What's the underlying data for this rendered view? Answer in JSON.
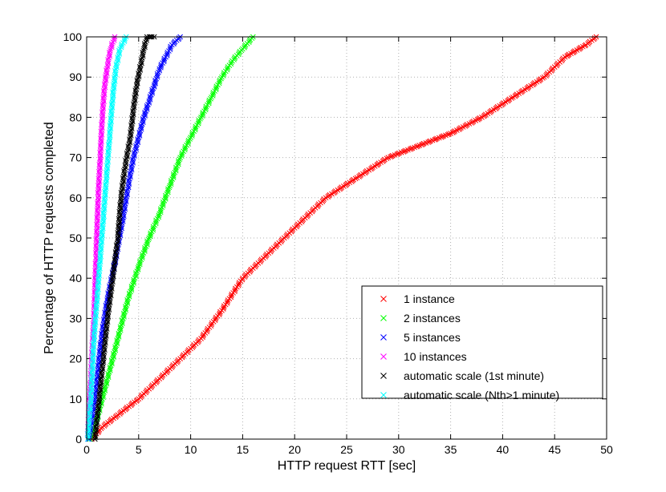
{
  "chart_data": {
    "type": "scatter",
    "title": "",
    "xlabel": "HTTP request RTT [sec]",
    "ylabel": "Percentage of HTTP requests completed",
    "xlim": [
      0,
      50
    ],
    "ylim": [
      0,
      100
    ],
    "xticks": [
      0,
      5,
      10,
      15,
      20,
      25,
      30,
      35,
      40,
      45,
      50
    ],
    "yticks": [
      0,
      10,
      20,
      30,
      40,
      50,
      60,
      70,
      80,
      90,
      100
    ],
    "grid": true,
    "legend_position": "bottom-right",
    "marker": "x",
    "series": [
      {
        "name": "1 instance",
        "color": "#ff0000",
        "points": [
          [
            0.5,
            0
          ],
          [
            1.5,
            3
          ],
          [
            3,
            6
          ],
          [
            5,
            10
          ],
          [
            7,
            15
          ],
          [
            9,
            20
          ],
          [
            11,
            25
          ],
          [
            13,
            32
          ],
          [
            15,
            40
          ],
          [
            17,
            45
          ],
          [
            19,
            50
          ],
          [
            21,
            55
          ],
          [
            23,
            60
          ],
          [
            26,
            65
          ],
          [
            29,
            70
          ],
          [
            32,
            73
          ],
          [
            35,
            76
          ],
          [
            38,
            80
          ],
          [
            41,
            85
          ],
          [
            44,
            90
          ],
          [
            46,
            95
          ],
          [
            48,
            98
          ],
          [
            49,
            100
          ]
        ]
      },
      {
        "name": "2 instances",
        "color": "#00ff00",
        "points": [
          [
            0.3,
            0
          ],
          [
            1,
            5
          ],
          [
            2,
            15
          ],
          [
            3,
            25
          ],
          [
            4,
            35
          ],
          [
            5,
            43
          ],
          [
            6,
            50
          ],
          [
            7,
            56
          ],
          [
            8,
            63
          ],
          [
            9,
            70
          ],
          [
            10,
            75
          ],
          [
            11,
            80
          ],
          [
            12,
            85
          ],
          [
            13,
            90
          ],
          [
            14,
            94
          ],
          [
            15,
            97
          ],
          [
            16,
            100
          ]
        ]
      },
      {
        "name": "5 instances",
        "color": "#0000ff",
        "points": [
          [
            0.2,
            0
          ],
          [
            0.8,
            10
          ],
          [
            1.4,
            25
          ],
          [
            2,
            35
          ],
          [
            2.8,
            45
          ],
          [
            3.5,
            55
          ],
          [
            4,
            63
          ],
          [
            4.5,
            70
          ],
          [
            5,
            75
          ],
          [
            5.5,
            80
          ],
          [
            6,
            84
          ],
          [
            6.5,
            88
          ],
          [
            7,
            92
          ],
          [
            7.6,
            95
          ],
          [
            8.2,
            98
          ],
          [
            9,
            100
          ]
        ]
      },
      {
        "name": "10 instances",
        "color": "#ff00ff",
        "points": [
          [
            0.1,
            0
          ],
          [
            0.4,
            15
          ],
          [
            0.7,
            30
          ],
          [
            0.9,
            45
          ],
          [
            1.1,
            60
          ],
          [
            1.3,
            70
          ],
          [
            1.5,
            80
          ],
          [
            1.7,
            87
          ],
          [
            2,
            93
          ],
          [
            2.3,
            97
          ],
          [
            2.7,
            100
          ]
        ]
      },
      {
        "name": "automatic scale (1st minute)",
        "color": "#000000",
        "points": [
          [
            0.8,
            0
          ],
          [
            1.2,
            10
          ],
          [
            1.6,
            20
          ],
          [
            2,
            30
          ],
          [
            2.5,
            40
          ],
          [
            3,
            50
          ],
          [
            3.3,
            60
          ],
          [
            3.7,
            68
          ],
          [
            4.2,
            75
          ],
          [
            4.5,
            82
          ],
          [
            4.8,
            88
          ],
          [
            5.2,
            93
          ],
          [
            5.5,
            97
          ],
          [
            5.8,
            100
          ],
          [
            6.5,
            100
          ]
        ]
      },
      {
        "name": "automatic scale (Nth>1 minute)",
        "color": "#00ffff",
        "points": [
          [
            0.1,
            0
          ],
          [
            0.4,
            10
          ],
          [
            0.7,
            25
          ],
          [
            1,
            35
          ],
          [
            1.3,
            45
          ],
          [
            1.6,
            55
          ],
          [
            1.9,
            65
          ],
          [
            2.2,
            75
          ],
          [
            2.5,
            85
          ],
          [
            2.8,
            92
          ],
          [
            3.2,
            97
          ],
          [
            3.8,
            100
          ]
        ]
      }
    ]
  }
}
